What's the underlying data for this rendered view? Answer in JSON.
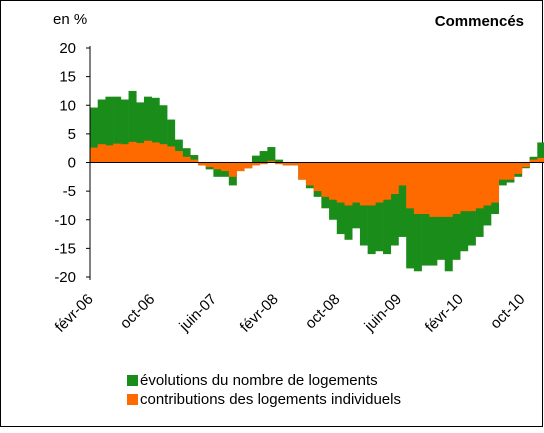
{
  "chart_data": {
    "type": "bar",
    "title": "Commencés",
    "y_label": "en %",
    "categories": [
      "févr-06",
      null,
      null,
      null,
      null,
      null,
      null,
      null,
      "oct-06",
      null,
      null,
      null,
      null,
      null,
      null,
      null,
      "juin-07",
      null,
      null,
      null,
      null,
      null,
      null,
      null,
      "févr-08",
      null,
      null,
      null,
      null,
      null,
      null,
      null,
      "oct-08",
      null,
      null,
      null,
      null,
      null,
      null,
      null,
      "juin-09",
      null,
      null,
      null,
      null,
      null,
      null,
      null,
      "févr-10",
      null,
      null,
      null,
      null,
      null,
      null,
      null,
      "oct-10",
      null,
      null
    ],
    "series": [
      {
        "name": "évolutions du nombre de logements",
        "color": "#1a8c1a",
        "values": [
          9.6,
          11,
          11.5,
          11.5,
          11,
          12.5,
          10.5,
          11.5,
          11.3,
          10,
          7.5,
          4,
          2.5,
          1.3,
          -0.5,
          -1.2,
          -2.5,
          -2.5,
          -4,
          -1.5,
          -1,
          1.2,
          2,
          2.7,
          0.5,
          -0.5,
          -0.5,
          -3,
          -4.5,
          -6,
          -8,
          -10,
          -12.5,
          -13.5,
          -11.5,
          -14.5,
          -16,
          -15.5,
          -16,
          -14.5,
          -13,
          -18.5,
          -19,
          -18,
          -18,
          -17,
          -19,
          -17,
          -15.5,
          -14.5,
          -13,
          -11,
          -9,
          -4,
          -3.5,
          -2.5,
          -1,
          1,
          3.5
        ]
      },
      {
        "name": "contributions des logements individuels",
        "color": "#ff6a00",
        "values": [
          2.6,
          3.2,
          3,
          3.3,
          3.2,
          3.6,
          3.4,
          3.8,
          3.5,
          3.2,
          2.8,
          2,
          1,
          0.5,
          -0.5,
          -0.8,
          -1.2,
          -1.5,
          -2.5,
          -1.5,
          -1,
          -0.5,
          -0.3,
          0.3,
          -0.3,
          -0.5,
          -0.5,
          -3,
          -4,
          -5,
          -6,
          -6.5,
          -7,
          -7.5,
          -7,
          -7.5,
          -7.5,
          -7,
          -6.5,
          -5.5,
          -4,
          -8,
          -9,
          -9,
          -9.5,
          -9.5,
          -9.5,
          -9,
          -8.5,
          -8.5,
          -8,
          -7.5,
          -7,
          -3,
          -3,
          -2,
          -0.8,
          0.5,
          0.8
        ]
      }
    ],
    "ylim": [
      -20,
      20
    ],
    "yticks": [
      -20,
      -15,
      -10,
      -5,
      0,
      5,
      10,
      15,
      20
    ]
  }
}
